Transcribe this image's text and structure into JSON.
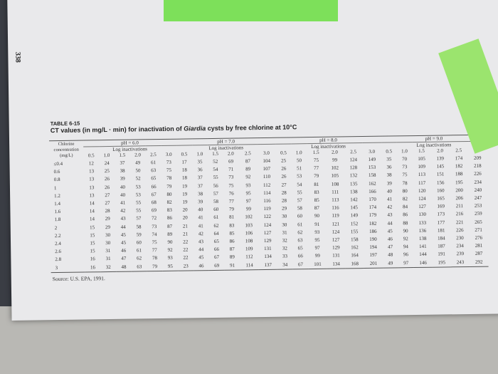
{
  "page_number": "338",
  "caption": {
    "label": "TABLE 6-15",
    "title_before": "CT values (in mg/L · min) for inactivation of ",
    "title_italic": "Giardia",
    "title_after": " cysts by free chlorine at 10°C"
  },
  "table": {
    "first_header": "Chlorine concentration (mg/L)",
    "log_header": "Log inactivations",
    "groups": [
      "pH = 6.0",
      "pH = 7.0",
      "pH = 8.0",
      "pH = 9.0"
    ],
    "log_values": [
      "0.5",
      "1.0",
      "1.5",
      "2.0",
      "2.5",
      "3.0"
    ],
    "rows": [
      {
        "label": "≤0.4",
        "values": [
          12,
          24,
          37,
          49,
          61,
          73,
          17,
          35,
          52,
          69,
          87,
          104,
          25,
          50,
          75,
          99,
          124,
          149,
          35,
          70,
          105,
          139,
          174,
          209
        ]
      },
      {
        "label": "0.6",
        "values": [
          13,
          25,
          38,
          50,
          63,
          75,
          18,
          36,
          54,
          71,
          89,
          107,
          26,
          51,
          77,
          102,
          128,
          153,
          36,
          73,
          109,
          145,
          182,
          218
        ]
      },
      {
        "label": "0.8",
        "values": [
          13,
          26,
          39,
          52,
          65,
          78,
          18,
          37,
          55,
          73,
          92,
          110,
          26,
          53,
          79,
          105,
          132,
          158,
          38,
          75,
          113,
          151,
          188,
          226
        ]
      },
      {
        "label": "1",
        "values": [
          13,
          26,
          40,
          53,
          66,
          79,
          19,
          37,
          56,
          75,
          93,
          112,
          27,
          54,
          81,
          108,
          135,
          162,
          39,
          78,
          117,
          156,
          195,
          234
        ]
      },
      {
        "label": "1.2",
        "values": [
          13,
          27,
          40,
          53,
          67,
          80,
          19,
          38,
          57,
          76,
          95,
          114,
          28,
          55,
          83,
          111,
          138,
          166,
          40,
          80,
          120,
          160,
          200,
          240
        ]
      },
      {
        "label": "1.4",
        "values": [
          14,
          27,
          41,
          55,
          68,
          82,
          19,
          39,
          58,
          77,
          97,
          116,
          28,
          57,
          85,
          113,
          142,
          170,
          41,
          82,
          124,
          165,
          206,
          247
        ]
      },
      {
        "label": "1.6",
        "values": [
          14,
          28,
          42,
          55,
          69,
          83,
          20,
          40,
          60,
          79,
          99,
          119,
          29,
          58,
          87,
          116,
          145,
          174,
          42,
          84,
          127,
          169,
          211,
          253
        ]
      },
      {
        "label": "1.8",
        "values": [
          14,
          29,
          43,
          57,
          72,
          86,
          20,
          41,
          61,
          81,
          102,
          122,
          30,
          60,
          90,
          119,
          149,
          179,
          43,
          86,
          130,
          173,
          216,
          259
        ]
      },
      {
        "label": "2",
        "values": [
          15,
          29,
          44,
          58,
          73,
          87,
          21,
          41,
          62,
          83,
          103,
          124,
          30,
          61,
          91,
          121,
          152,
          182,
          44,
          88,
          133,
          177,
          221,
          265
        ]
      },
      {
        "label": "2.2",
        "values": [
          15,
          30,
          45,
          59,
          74,
          89,
          21,
          42,
          64,
          85,
          106,
          127,
          31,
          62,
          93,
          124,
          155,
          186,
          45,
          90,
          136,
          181,
          226,
          271
        ]
      },
      {
        "label": "2.4",
        "values": [
          15,
          30,
          45,
          60,
          75,
          90,
          22,
          43,
          65,
          86,
          108,
          129,
          32,
          63,
          95,
          127,
          158,
          190,
          46,
          92,
          138,
          184,
          230,
          276
        ]
      },
      {
        "label": "2.6",
        "values": [
          15,
          31,
          46,
          61,
          77,
          92,
          22,
          44,
          66,
          87,
          109,
          131,
          32,
          65,
          97,
          129,
          162,
          194,
          47,
          94,
          141,
          187,
          234,
          281
        ]
      },
      {
        "label": "2.8",
        "values": [
          16,
          31,
          47,
          62,
          78,
          93,
          22,
          45,
          67,
          89,
          112,
          134,
          33,
          66,
          99,
          131,
          164,
          197,
          48,
          96,
          144,
          191,
          239,
          287
        ]
      },
      {
        "label": "3",
        "values": [
          16,
          32,
          48,
          63,
          79,
          95,
          23,
          46,
          69,
          91,
          114,
          137,
          34,
          67,
          101,
          134,
          168,
          201,
          49,
          97,
          146,
          195,
          243,
          292
        ]
      }
    ]
  },
  "source": "Source: U.S. EPA, 1991."
}
